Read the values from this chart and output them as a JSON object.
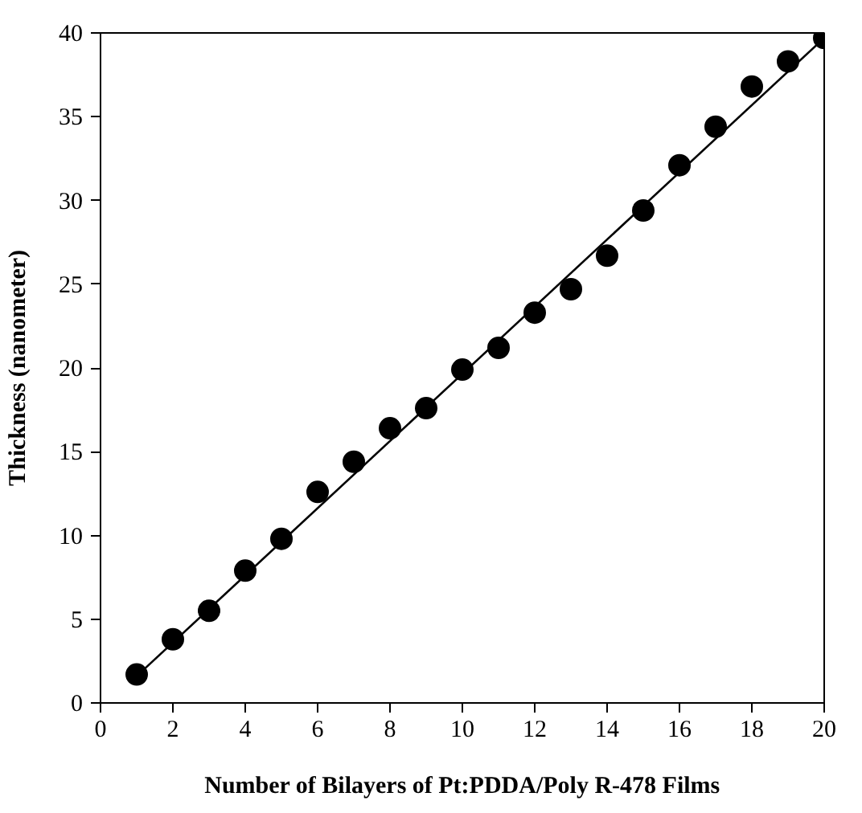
{
  "chart_data": {
    "type": "scatter",
    "xlabel": "Number of Bilayers of Pt:PDDA/Poly R-478 Films",
    "ylabel": "Thickness (nanometer)",
    "xlim": [
      0,
      20
    ],
    "ylim": [
      0,
      40
    ],
    "xticks": [
      0,
      2,
      4,
      6,
      8,
      10,
      12,
      14,
      16,
      18,
      20
    ],
    "yticks": [
      0,
      5,
      10,
      15,
      20,
      25,
      30,
      35,
      40
    ],
    "grid": false,
    "series": [
      {
        "marker": "circle",
        "color": "#000000",
        "x": [
          1,
          2,
          3,
          4,
          5,
          6,
          7,
          8,
          9,
          10,
          11,
          12,
          13,
          14,
          15,
          16,
          17,
          18,
          19,
          20
        ],
        "values": [
          1.7,
          3.8,
          5.5,
          7.9,
          9.8,
          12.6,
          14.4,
          16.4,
          17.6,
          19.9,
          21.2,
          23.3,
          24.7,
          26.7,
          29.4,
          32.1,
          34.4,
          36.8,
          38.3,
          39.7
        ]
      },
      {
        "type": "line",
        "marker": "none",
        "color": "#000000",
        "line_style": "solid",
        "x": [
          1,
          20
        ],
        "values": [
          1.6,
          39.7
        ]
      }
    ]
  }
}
